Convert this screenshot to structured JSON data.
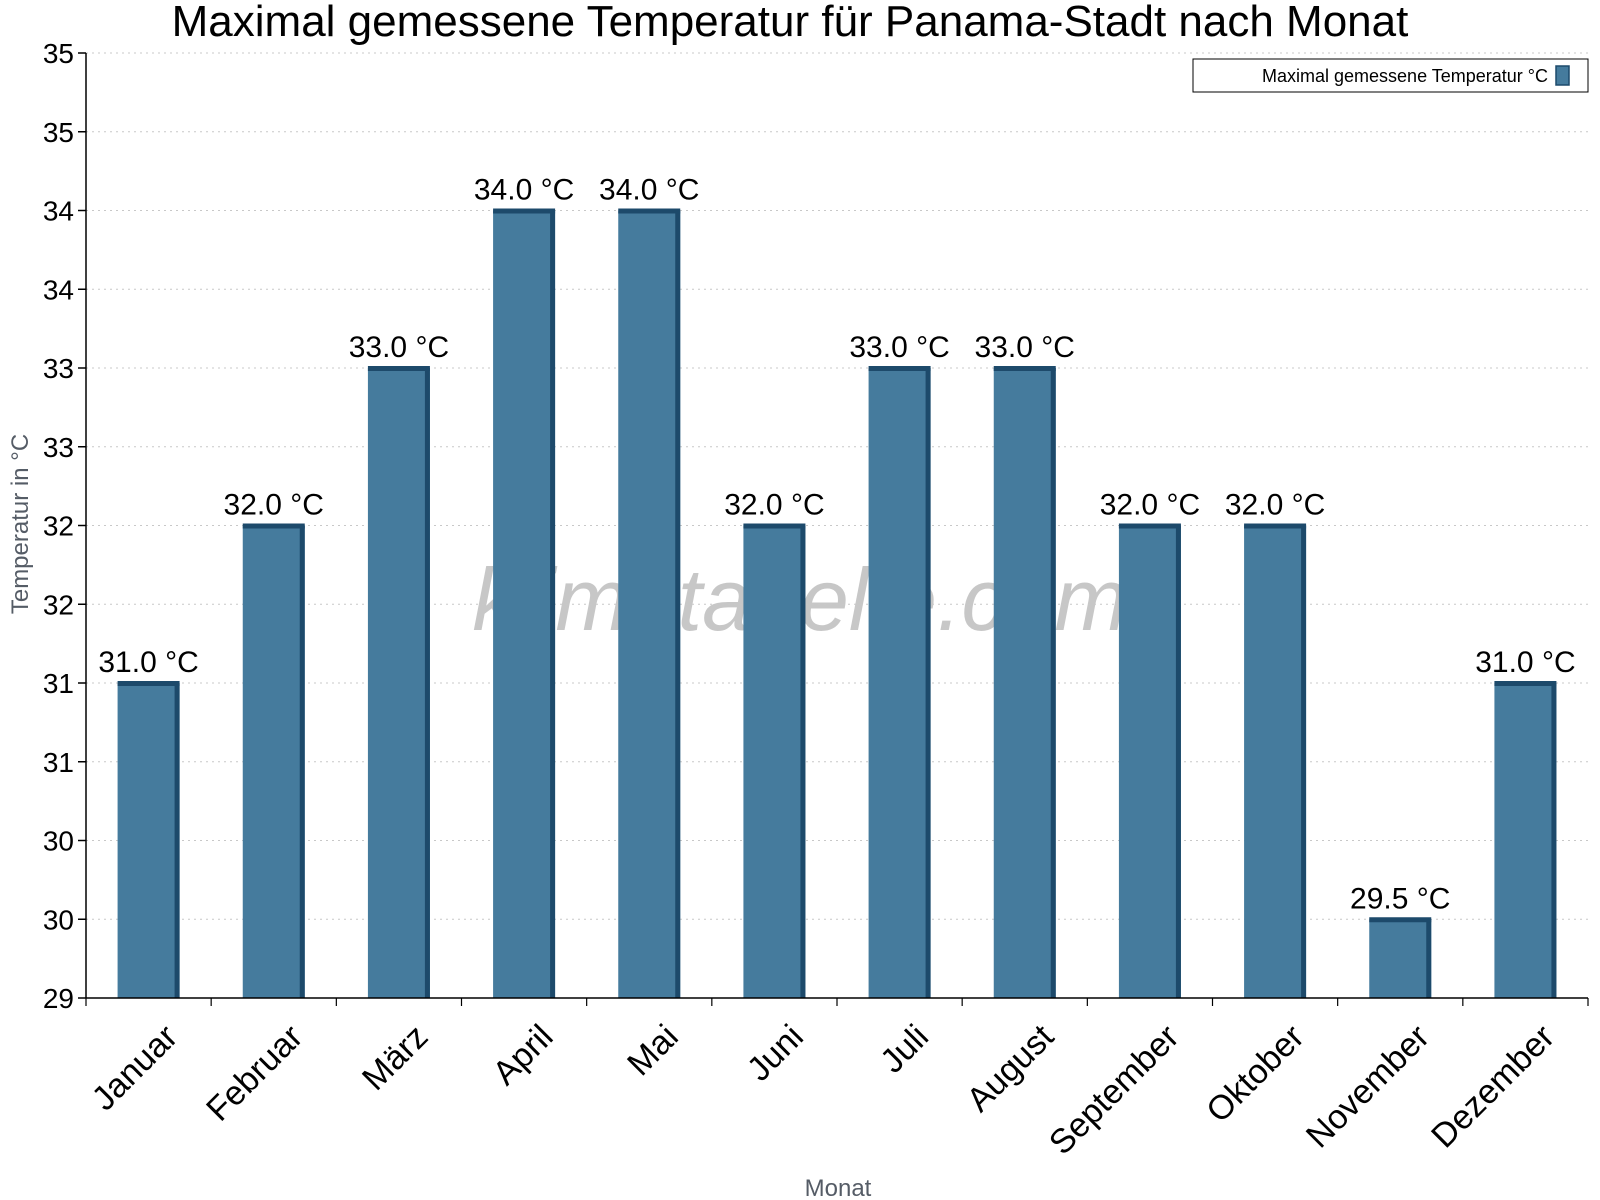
{
  "chart_data": {
    "type": "bar",
    "title": "Maximal gemessene Temperatur für Panama-Stadt nach Monat",
    "xlabel": "Monat",
    "ylabel": "Temperatur in °C",
    "categories": [
      "Januar",
      "Februar",
      "März",
      "April",
      "Mai",
      "Juni",
      "Juli",
      "August",
      "September",
      "Oktober",
      "November",
      "Dezember"
    ],
    "series": [
      {
        "name": "Maximal gemessene Temperatur °C",
        "values": [
          31.0,
          32.0,
          33.0,
          34.0,
          34.0,
          32.0,
          33.0,
          33.0,
          32.0,
          32.0,
          29.5,
          31.0
        ],
        "labels": [
          "31.0 °C",
          "32.0 °C",
          "33.0 °C",
          "34.0 °C",
          "34.0 °C",
          "32.0 °C",
          "33.0 °C",
          "33.0 °C",
          "32.0 °C",
          "32.0 °C",
          "29.5 °C",
          "31.0 °C"
        ]
      }
    ],
    "ylim": [
      29,
      35
    ],
    "yticks": [
      29,
      29.5,
      30,
      30.5,
      31,
      31.5,
      32,
      32.5,
      33,
      33.5,
      34,
      34.5,
      35
    ],
    "ytick_labels": [
      "29",
      "30",
      "30",
      "31",
      "31",
      "32",
      "32",
      "33",
      "33",
      "34",
      "34",
      "35",
      "35"
    ],
    "grid": true,
    "legend_position": "top-right",
    "watermark": "klimatabelle.com",
    "colors": {
      "bar": "#457b9d",
      "bar_edge": "#1d4a6b",
      "grid": "#c8c8c8"
    }
  }
}
